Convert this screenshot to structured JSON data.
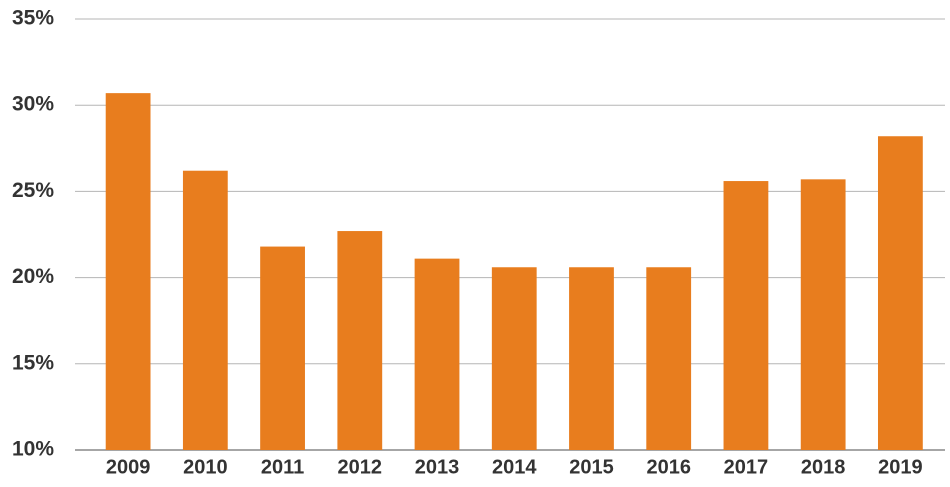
{
  "chart_data": {
    "type": "bar",
    "categories": [
      "2009",
      "2010",
      "2011",
      "2012",
      "2013",
      "2014",
      "2015",
      "2016",
      "2017",
      "2018",
      "2019"
    ],
    "values": [
      30.7,
      26.2,
      21.8,
      22.7,
      21.1,
      20.6,
      20.6,
      20.6,
      25.6,
      25.7,
      28.2
    ],
    "color": "#e87d1e",
    "ylim": [
      10,
      35
    ],
    "yticks": [
      {
        "value": 10,
        "label": "10%"
      },
      {
        "value": 15,
        "label": "15%"
      },
      {
        "value": 20,
        "label": "20%"
      },
      {
        "value": 25,
        "label": "25%"
      },
      {
        "value": 30,
        "label": "30%"
      },
      {
        "value": 35,
        "label": "35%"
      }
    ],
    "grid": true
  }
}
